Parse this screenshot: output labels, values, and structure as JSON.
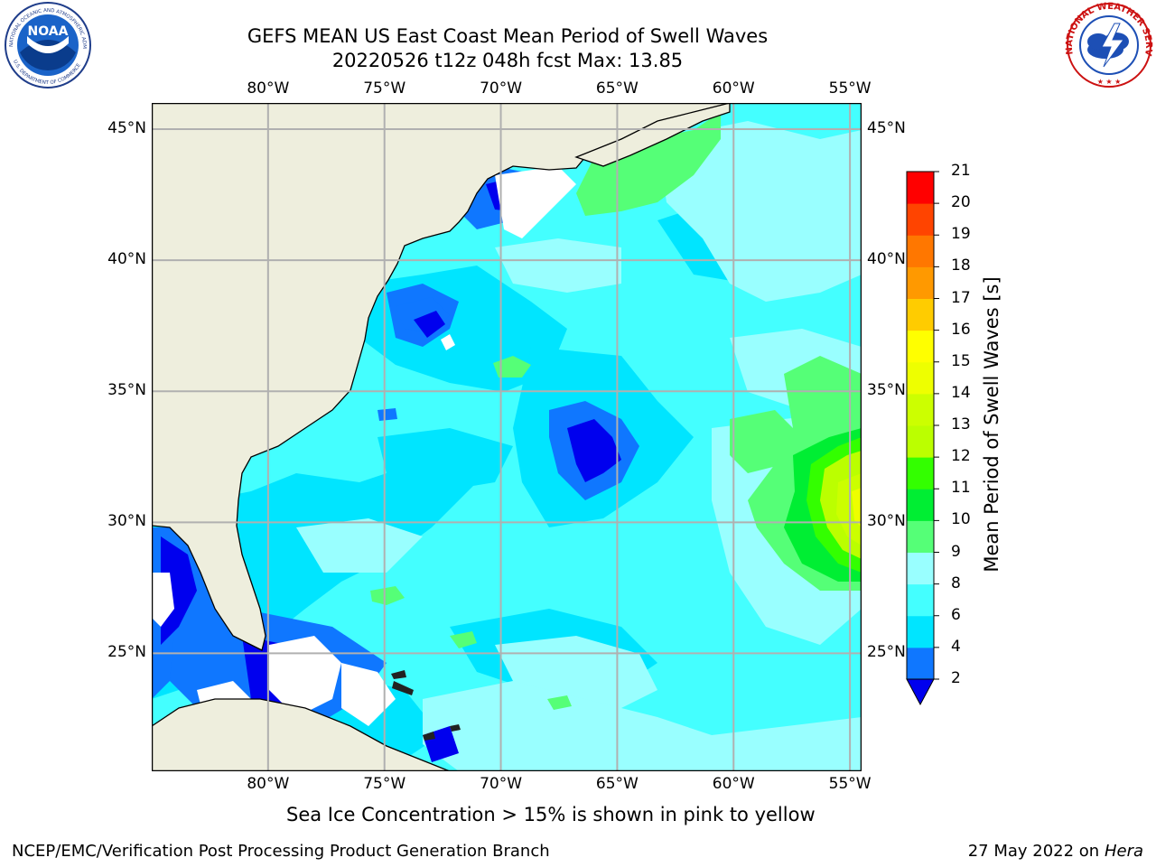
{
  "header": {
    "title_line1": "GEFS MEAN US East Coast Mean Period of Swell Waves",
    "title_line2": "20220526 t12z 048h fcst   Max: 13.85"
  },
  "logos": {
    "noaa_text": "NOAA",
    "noaa_ring_text": "NATIONAL OCEANIC AND ATMOSPHERIC ADMINISTRATION",
    "noaa_ring_bottom": "U.S. DEPARTMENT OF COMMERCE",
    "nws_ring_text": "NATIONAL WEATHER SERVICE"
  },
  "map": {
    "lon_labels": [
      "80°W",
      "75°W",
      "70°W",
      "65°W",
      "60°W",
      "55°W"
    ],
    "lat_labels": [
      "45°N",
      "40°N",
      "35°N",
      "30°N",
      "25°N"
    ],
    "lon_extent": [
      -85,
      -54.5
    ],
    "lat_extent": [
      20.5,
      46
    ],
    "colors": {
      "land": "#eeeedd",
      "grid": "#b0b0b0"
    }
  },
  "colorbar": {
    "label": "Mean Period of Swell Waves [s]",
    "ticks": [
      "2",
      "4",
      "6",
      "8",
      "9",
      "10",
      "11",
      "12",
      "13",
      "14",
      "15",
      "16",
      "17",
      "18",
      "19",
      "20",
      "21"
    ],
    "levels": [
      {
        "from": 2,
        "to": 4,
        "color": "#0f77ff"
      },
      {
        "from": 4,
        "to": 6,
        "color": "#00e5ff"
      },
      {
        "from": 6,
        "to": 8,
        "color": "#44ffff"
      },
      {
        "from": 8,
        "to": 9,
        "color": "#99ffff"
      },
      {
        "from": 9,
        "to": 10,
        "color": "#55ff77"
      },
      {
        "from": 10,
        "to": 11,
        "color": "#00ee33"
      },
      {
        "from": 11,
        "to": 12,
        "color": "#33ff00"
      },
      {
        "from": 12,
        "to": 13,
        "color": "#bbff00"
      },
      {
        "from": 13,
        "to": 14,
        "color": "#ccff00"
      },
      {
        "from": 14,
        "to": 15,
        "color": "#eeff00"
      },
      {
        "from": 15,
        "to": 16,
        "color": "#ffff00"
      },
      {
        "from": 16,
        "to": 17,
        "color": "#ffcc00"
      },
      {
        "from": 17,
        "to": 18,
        "color": "#ff9900"
      },
      {
        "from": 18,
        "to": 19,
        "color": "#ff7700"
      },
      {
        "from": 19,
        "to": 20,
        "color": "#ff4400"
      },
      {
        "from": 20,
        "to": 21,
        "color": "#ff0000"
      }
    ],
    "extend_color": "#0000ee"
  },
  "caption": "Sea Ice Concentration > 15% is shown in pink to yellow",
  "footer": {
    "left": "NCEP/EMC/Verification Post Processing Product Generation Branch",
    "right_date": "27 May 2022 on",
    "right_host": "Hera"
  }
}
